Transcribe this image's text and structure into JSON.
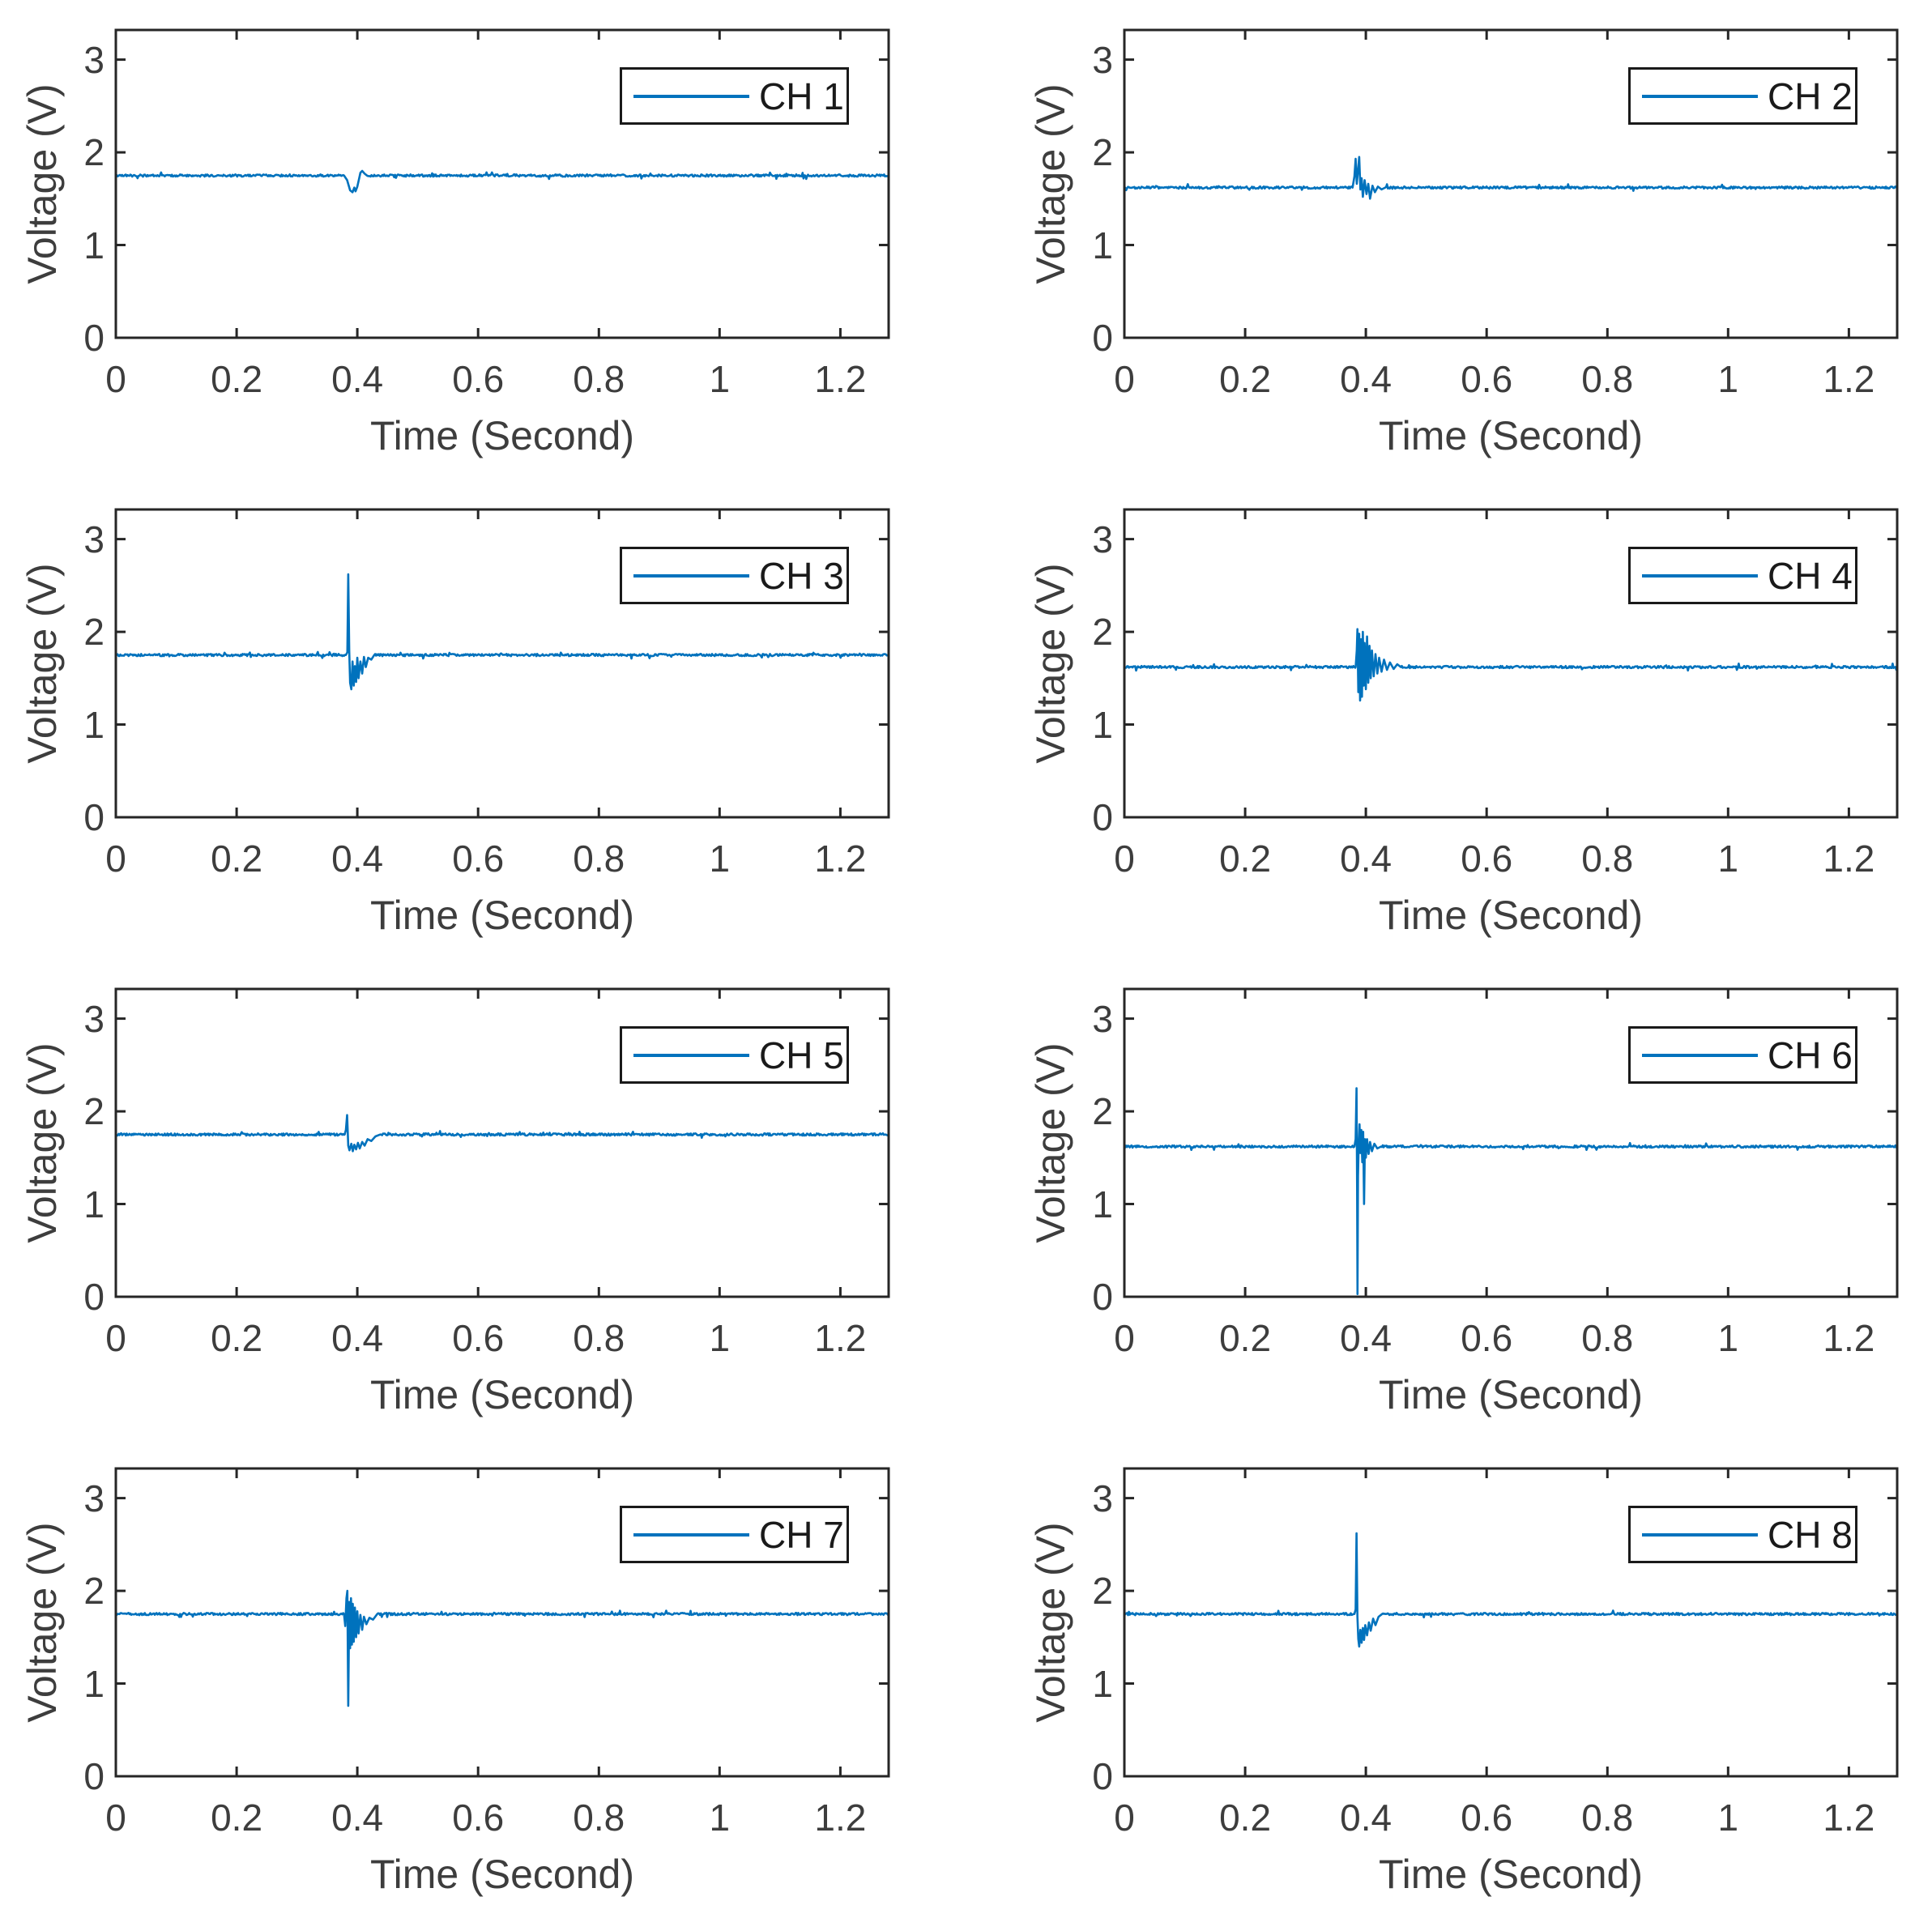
{
  "figure": {
    "background": "#ffffff",
    "description": "4x2 grid of voltage-vs-time line plots for 8 channels, each showing a flat baseline with a short transient burst near t = 0.39 s"
  },
  "chart_data": {
    "type": "line",
    "layout": {
      "rows": 4,
      "cols": 2,
      "grid": false,
      "box": true,
      "tick_direction": "in",
      "legend_position": "top-right inside axes"
    },
    "xlabel": "Time (Second)",
    "ylabel": "Voltage (V)",
    "xlim": [
      0,
      1.28
    ],
    "ylim": [
      0,
      3.32
    ],
    "x_ticks": [
      0,
      0.2,
      0.4,
      0.6,
      0.8,
      1,
      1.2
    ],
    "x_tick_labels": [
      "0",
      "0.2",
      "0.4",
      "0.6",
      "0.8",
      "1",
      "1.2"
    ],
    "y_ticks": [
      0,
      1,
      2,
      3
    ],
    "y_tick_labels": [
      "0",
      "1",
      "2",
      "3"
    ],
    "line_color": "#0072BD",
    "axis_color": "#262626",
    "text_color": "#3d3d3d",
    "legend_text_color": "#1a1a1a",
    "noise_amplitude": 0.012,
    "sample_step": 0.0015,
    "charts": [
      {
        "legend": "CH 1",
        "baseline": 1.75,
        "transient_at": 0.39,
        "min_v": 1.57,
        "max_v": 1.8,
        "keypoints": [
          [
            0.378,
            1.75
          ],
          [
            0.383,
            1.7
          ],
          [
            0.388,
            1.59
          ],
          [
            0.392,
            1.57
          ],
          [
            0.395,
            1.62
          ],
          [
            0.397,
            1.58
          ],
          [
            0.4,
            1.63
          ],
          [
            0.403,
            1.72
          ],
          [
            0.405,
            1.78
          ],
          [
            0.408,
            1.8
          ],
          [
            0.412,
            1.77
          ],
          [
            0.416,
            1.75
          ]
        ]
      },
      {
        "legend": "CH 2",
        "baseline": 1.62,
        "transient_at": 0.39,
        "min_v": 1.5,
        "max_v": 1.95,
        "keypoints": [
          [
            0.378,
            1.62
          ],
          [
            0.381,
            1.74
          ],
          [
            0.383,
            1.93
          ],
          [
            0.385,
            1.66
          ],
          [
            0.387,
            1.8
          ],
          [
            0.389,
            1.95
          ],
          [
            0.391,
            1.6
          ],
          [
            0.393,
            1.72
          ],
          [
            0.395,
            1.52
          ],
          [
            0.398,
            1.7
          ],
          [
            0.401,
            1.55
          ],
          [
            0.404,
            1.66
          ],
          [
            0.407,
            1.5
          ],
          [
            0.411,
            1.64
          ],
          [
            0.415,
            1.57
          ],
          [
            0.42,
            1.63
          ],
          [
            0.426,
            1.6
          ],
          [
            0.432,
            1.62
          ]
        ]
      },
      {
        "legend": "CH 3",
        "baseline": 1.75,
        "transient_at": 0.385,
        "min_v": 1.38,
        "max_v": 2.62,
        "keypoints": [
          [
            0.381,
            1.75
          ],
          [
            0.3835,
            1.78
          ],
          [
            0.385,
            2.62
          ],
          [
            0.3865,
            1.8
          ],
          [
            0.388,
            1.45
          ],
          [
            0.39,
            1.38
          ],
          [
            0.392,
            1.68
          ],
          [
            0.394,
            1.42
          ],
          [
            0.396,
            1.63
          ],
          [
            0.398,
            1.46
          ],
          [
            0.4,
            1.72
          ],
          [
            0.402,
            1.5
          ],
          [
            0.405,
            1.68
          ],
          [
            0.408,
            1.55
          ],
          [
            0.411,
            1.73
          ],
          [
            0.414,
            1.62
          ],
          [
            0.418,
            1.72
          ],
          [
            0.423,
            1.7
          ],
          [
            0.428,
            1.75
          ]
        ]
      },
      {
        "legend": "CH 4",
        "baseline": 1.62,
        "transient_at": 0.39,
        "min_v": 1.26,
        "max_v": 2.03,
        "keypoints": [
          [
            0.383,
            1.62
          ],
          [
            0.385,
            1.8
          ],
          [
            0.386,
            2.03
          ],
          [
            0.3875,
            1.35
          ],
          [
            0.389,
            1.98
          ],
          [
            0.3905,
            1.26
          ],
          [
            0.392,
            1.92
          ],
          [
            0.3935,
            1.3
          ],
          [
            0.395,
            2.0
          ],
          [
            0.3965,
            1.42
          ],
          [
            0.398,
            1.88
          ],
          [
            0.4,
            1.38
          ],
          [
            0.402,
            1.95
          ],
          [
            0.404,
            1.45
          ],
          [
            0.406,
            1.85
          ],
          [
            0.408,
            1.5
          ],
          [
            0.41,
            1.8
          ],
          [
            0.413,
            1.52
          ],
          [
            0.416,
            1.76
          ],
          [
            0.419,
            1.55
          ],
          [
            0.422,
            1.72
          ],
          [
            0.426,
            1.57
          ],
          [
            0.43,
            1.7
          ],
          [
            0.435,
            1.59
          ],
          [
            0.44,
            1.67
          ],
          [
            0.446,
            1.6
          ],
          [
            0.452,
            1.65
          ],
          [
            0.458,
            1.62
          ]
        ]
      },
      {
        "legend": "CH 5",
        "baseline": 1.75,
        "transient_at": 0.385,
        "min_v": 1.57,
        "max_v": 1.96,
        "keypoints": [
          [
            0.379,
            1.75
          ],
          [
            0.381,
            1.8
          ],
          [
            0.383,
            1.96
          ],
          [
            0.385,
            1.63
          ],
          [
            0.387,
            1.58
          ],
          [
            0.39,
            1.65
          ],
          [
            0.3925,
            1.57
          ],
          [
            0.395,
            1.64
          ],
          [
            0.398,
            1.59
          ],
          [
            0.401,
            1.66
          ],
          [
            0.404,
            1.6
          ],
          [
            0.408,
            1.67
          ],
          [
            0.412,
            1.63
          ],
          [
            0.417,
            1.7
          ],
          [
            0.423,
            1.68
          ],
          [
            0.43,
            1.73
          ],
          [
            0.438,
            1.75
          ]
        ]
      },
      {
        "legend": "CH 6",
        "baseline": 1.62,
        "transient_at": 0.386,
        "min_v": 0.03,
        "max_v": 2.25,
        "keypoints": [
          [
            0.381,
            1.62
          ],
          [
            0.383,
            1.7
          ],
          [
            0.3845,
            2.25
          ],
          [
            0.3855,
            1.2
          ],
          [
            0.3862,
            0.03
          ],
          [
            0.387,
            1.3
          ],
          [
            0.388,
            1.62
          ],
          [
            0.3895,
            1.86
          ],
          [
            0.391,
            1.55
          ],
          [
            0.3925,
            1.8
          ],
          [
            0.394,
            1.45
          ],
          [
            0.3955,
            1.78
          ],
          [
            0.397,
            1.0
          ],
          [
            0.3985,
            1.7
          ],
          [
            0.4,
            1.5
          ],
          [
            0.402,
            1.7
          ],
          [
            0.4045,
            1.54
          ],
          [
            0.407,
            1.67
          ],
          [
            0.41,
            1.57
          ],
          [
            0.414,
            1.65
          ],
          [
            0.419,
            1.6
          ],
          [
            0.425,
            1.62
          ]
        ]
      },
      {
        "legend": "CH 7",
        "baseline": 1.75,
        "transient_at": 0.385,
        "min_v": 0.76,
        "max_v": 2.0,
        "keypoints": [
          [
            0.378,
            1.75
          ],
          [
            0.38,
            1.62
          ],
          [
            0.382,
            1.92
          ],
          [
            0.3835,
            2.0
          ],
          [
            0.385,
            0.76
          ],
          [
            0.3865,
            1.88
          ],
          [
            0.388,
            1.38
          ],
          [
            0.3895,
            1.92
          ],
          [
            0.391,
            1.42
          ],
          [
            0.3925,
            1.86
          ],
          [
            0.394,
            1.45
          ],
          [
            0.396,
            1.82
          ],
          [
            0.398,
            1.5
          ],
          [
            0.4,
            1.78
          ],
          [
            0.402,
            1.54
          ],
          [
            0.405,
            1.74
          ],
          [
            0.408,
            1.58
          ],
          [
            0.411,
            1.72
          ],
          [
            0.415,
            1.64
          ],
          [
            0.42,
            1.71
          ],
          [
            0.426,
            1.69
          ],
          [
            0.433,
            1.75
          ]
        ]
      },
      {
        "legend": "CH 8",
        "baseline": 1.75,
        "transient_at": 0.385,
        "min_v": 1.4,
        "max_v": 2.62,
        "keypoints": [
          [
            0.381,
            1.75
          ],
          [
            0.383,
            1.8
          ],
          [
            0.3845,
            2.62
          ],
          [
            0.386,
            1.72
          ],
          [
            0.3875,
            1.48
          ],
          [
            0.389,
            1.4
          ],
          [
            0.391,
            1.58
          ],
          [
            0.393,
            1.44
          ],
          [
            0.395,
            1.6
          ],
          [
            0.397,
            1.47
          ],
          [
            0.399,
            1.63
          ],
          [
            0.402,
            1.52
          ],
          [
            0.405,
            1.66
          ],
          [
            0.408,
            1.57
          ],
          [
            0.412,
            1.7
          ],
          [
            0.416,
            1.63
          ],
          [
            0.421,
            1.72
          ],
          [
            0.427,
            1.75
          ]
        ]
      }
    ]
  }
}
